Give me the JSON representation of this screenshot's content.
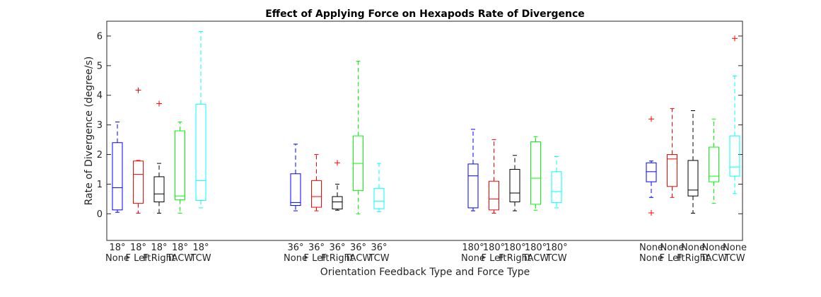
{
  "chart_data": {
    "type": "box",
    "title": "Effect of Applying Force on Hexapods Rate of Divergence",
    "xlabel": "Orientation Feedback Type and Force Type",
    "ylabel": "Rate of Divergence (degree/s)",
    "ylim": [
      -0.9,
      6.5
    ],
    "yticks": [
      "0",
      "1",
      "2",
      "3",
      "4",
      "5",
      "6"
    ],
    "grid": false,
    "boxes": [
      {
        "label_top": "18°",
        "label_bottom": "None",
        "color": "#0000ff",
        "whisker_low": 0.05,
        "q1": 0.13,
        "median": 0.88,
        "q3": 2.4,
        "whisker_high": 3.1,
        "outliers": []
      },
      {
        "label_top": "18°",
        "label_bottom": "F Left",
        "color": "#ff0000",
        "whisker_low": 0.02,
        "q1": 0.35,
        "median": 1.33,
        "q3": 1.78,
        "whisker_high": 1.8,
        "outliers": [
          4.17
        ]
      },
      {
        "label_top": "18°",
        "label_bottom": "F Right",
        "color": "#000000",
        "whisker_low": 0.02,
        "q1": 0.4,
        "median": 0.67,
        "q3": 1.25,
        "whisker_high": 1.7,
        "outliers": [
          3.72
        ]
      },
      {
        "label_top": "18°",
        "label_bottom": "TACW",
        "color": "#00ff00",
        "whisker_low": 0.02,
        "q1": 0.47,
        "median": 0.6,
        "q3": 2.8,
        "whisker_high": 3.1,
        "outliers": []
      },
      {
        "label_top": "18°",
        "label_bottom": "TCW",
        "color": "#00ffff",
        "whisker_low": 0.2,
        "q1": 0.45,
        "median": 1.12,
        "q3": 3.7,
        "whisker_high": 6.15,
        "outliers": []
      },
      {
        "label_top": "36°",
        "label_bottom": "None",
        "color": "#0000ff",
        "whisker_low": 0.1,
        "q1": 0.28,
        "median": 0.38,
        "q3": 1.35,
        "whisker_high": 2.35,
        "outliers": []
      },
      {
        "label_top": "36°",
        "label_bottom": "F Left",
        "color": "#ff0000",
        "whisker_low": 0.1,
        "q1": 0.22,
        "median": 0.58,
        "q3": 1.12,
        "whisker_high": 2.0,
        "outliers": []
      },
      {
        "label_top": "36°",
        "label_bottom": "F Right",
        "color": "#000000",
        "whisker_low": 0.12,
        "q1": 0.16,
        "median": 0.4,
        "q3": 0.58,
        "whisker_high": 1.0,
        "outliers": [
          1.72
        ]
      },
      {
        "label_top": "36°",
        "label_bottom": "TACW",
        "color": "#00ff00",
        "whisker_low": 0.0,
        "q1": 0.78,
        "median": 1.7,
        "q3": 2.63,
        "whisker_high": 5.15,
        "outliers": []
      },
      {
        "label_top": "36°",
        "label_bottom": "TCW",
        "color": "#00ffff",
        "whisker_low": 0.07,
        "q1": 0.17,
        "median": 0.43,
        "q3": 0.86,
        "whisker_high": 1.7,
        "outliers": []
      },
      {
        "label_top": "180°",
        "label_bottom": "None",
        "color": "#0000ff",
        "whisker_low": 0.1,
        "q1": 0.2,
        "median": 1.28,
        "q3": 1.68,
        "whisker_high": 2.85,
        "outliers": []
      },
      {
        "label_top": "180°",
        "label_bottom": "F Left",
        "color": "#ff0000",
        "whisker_low": 0.02,
        "q1": 0.13,
        "median": 0.5,
        "q3": 1.1,
        "whisker_high": 2.5,
        "outliers": []
      },
      {
        "label_top": "180°",
        "label_bottom": "F Right",
        "color": "#000000",
        "whisker_low": 0.1,
        "q1": 0.4,
        "median": 0.7,
        "q3": 1.5,
        "whisker_high": 1.97,
        "outliers": []
      },
      {
        "label_top": "180°",
        "label_bottom": "TACW",
        "color": "#00ff00",
        "whisker_low": 0.12,
        "q1": 0.32,
        "median": 1.2,
        "q3": 2.43,
        "whisker_high": 2.6,
        "outliers": []
      },
      {
        "label_top": "180°",
        "label_bottom": "TCW",
        "color": "#00ffff",
        "whisker_low": 0.2,
        "q1": 0.38,
        "median": 0.75,
        "q3": 1.42,
        "whisker_high": 1.93,
        "outliers": []
      },
      {
        "label_top": "None",
        "label_bottom": "None",
        "color": "#0000ff",
        "whisker_low": 0.55,
        "q1": 1.08,
        "median": 1.42,
        "q3": 1.72,
        "whisker_high": 1.78,
        "outliers": [
          0.03,
          3.2
        ]
      },
      {
        "label_top": "None",
        "label_bottom": "F Left",
        "color": "#ff0000",
        "whisker_low": 0.55,
        "q1": 0.92,
        "median": 1.85,
        "q3": 2.0,
        "whisker_high": 3.55,
        "outliers": []
      },
      {
        "label_top": "None",
        "label_bottom": "F Right",
        "color": "#000000",
        "whisker_low": 0.02,
        "q1": 0.6,
        "median": 0.8,
        "q3": 1.8,
        "whisker_high": 3.48,
        "outliers": []
      },
      {
        "label_top": "None",
        "label_bottom": "TACW",
        "color": "#00ff00",
        "whisker_low": 0.35,
        "q1": 1.08,
        "median": 1.27,
        "q3": 2.25,
        "whisker_high": 3.2,
        "outliers": []
      },
      {
        "label_top": "None",
        "label_bottom": "TCW",
        "color": "#00ffff",
        "whisker_low": 0.68,
        "q1": 1.27,
        "median": 1.58,
        "q3": 2.63,
        "whisker_high": 4.65,
        "outliers": [
          5.92
        ]
      }
    ]
  }
}
